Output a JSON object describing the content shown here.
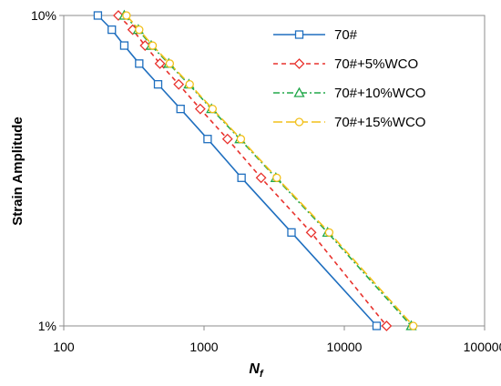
{
  "chart_data": {
    "type": "line",
    "title": "",
    "xlabel": "N",
    "xlabel_sub": "f",
    "ylabel": "Strain Amplitude",
    "x_scale": "log",
    "y_scale": "log",
    "xlim": [
      100,
      100000
    ],
    "ylim": [
      1,
      10
    ],
    "x_ticks": [
      100,
      1000,
      10000,
      100000
    ],
    "x_tick_labels": [
      "100",
      "1000",
      "10000",
      "100000"
    ],
    "y_ticks": [
      1,
      10
    ],
    "y_tick_labels": [
      "1%",
      "10%"
    ],
    "grid": false,
    "legend_position": "top-right",
    "series": [
      {
        "name": "70#",
        "color": "#1f6fbf",
        "dash": "solid",
        "marker": "square",
        "points": [
          [
            175,
            10
          ],
          [
            220,
            9
          ],
          [
            270,
            8
          ],
          [
            345,
            7
          ],
          [
            470,
            6
          ],
          [
            680,
            5
          ],
          [
            1060,
            4
          ],
          [
            1850,
            3
          ],
          [
            4200,
            2
          ],
          [
            17000,
            1
          ]
        ]
      },
      {
        "name": "70#+5%WCO",
        "color": "#e8322d",
        "dash": "dashed",
        "marker": "diamond",
        "points": [
          [
            245,
            10
          ],
          [
            310,
            9
          ],
          [
            380,
            8
          ],
          [
            485,
            7
          ],
          [
            660,
            6
          ],
          [
            940,
            5
          ],
          [
            1470,
            4
          ],
          [
            2550,
            3
          ],
          [
            5800,
            2
          ],
          [
            20000,
            1
          ]
        ]
      },
      {
        "name": "70#+10%WCO",
        "color": "#22a84a",
        "dash": "dashdot",
        "marker": "triangle",
        "points": [
          [
            270,
            10
          ],
          [
            340,
            9
          ],
          [
            420,
            8
          ],
          [
            560,
            7
          ],
          [
            780,
            6
          ],
          [
            1130,
            5
          ],
          [
            1800,
            4
          ],
          [
            3250,
            3
          ],
          [
            7600,
            2
          ],
          [
            30000,
            1
          ]
        ]
      },
      {
        "name": "70#+15%WCO",
        "color": "#f2c01a",
        "dash": "longdash",
        "marker": "circle",
        "points": [
          [
            280,
            10
          ],
          [
            345,
            9
          ],
          [
            430,
            8
          ],
          [
            570,
            7
          ],
          [
            790,
            6
          ],
          [
            1150,
            5
          ],
          [
            1830,
            4
          ],
          [
            3300,
            3
          ],
          [
            7800,
            2
          ],
          [
            31000,
            1
          ]
        ]
      }
    ]
  }
}
